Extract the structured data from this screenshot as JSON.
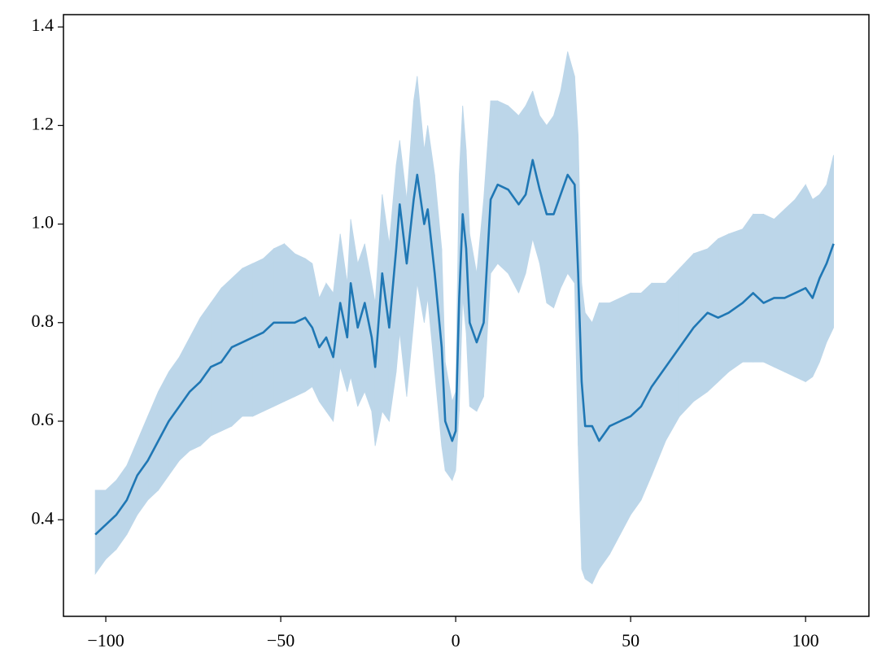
{
  "chart_data": {
    "type": "line",
    "x": [
      -103,
      -100,
      -97,
      -94,
      -91,
      -88,
      -85,
      -82,
      -79,
      -76,
      -73,
      -70,
      -67,
      -64,
      -61,
      -58,
      -55,
      -52,
      -49,
      -46,
      -43,
      -41,
      -39,
      -37,
      -35,
      -33,
      -31,
      -30,
      -28,
      -26,
      -24,
      -23,
      -21,
      -19,
      -17,
      -16,
      -14,
      -12,
      -11,
      -9,
      -8,
      -6,
      -4,
      -3,
      -1,
      0,
      1,
      2,
      3,
      4,
      6,
      8,
      10,
      12,
      15,
      18,
      20,
      22,
      24,
      26,
      28,
      30,
      32,
      34,
      35,
      36,
      37,
      39,
      41,
      44,
      47,
      50,
      53,
      56,
      60,
      64,
      68,
      72,
      75,
      78,
      82,
      85,
      88,
      91,
      94,
      97,
      100,
      102,
      104,
      106,
      108
    ],
    "series": [
      {
        "color": "#1f77b4",
        "band_color": "#bcd6e9",
        "values": [
          0.37,
          0.39,
          0.41,
          0.44,
          0.49,
          0.52,
          0.56,
          0.6,
          0.63,
          0.66,
          0.68,
          0.71,
          0.72,
          0.75,
          0.76,
          0.77,
          0.78,
          0.8,
          0.8,
          0.8,
          0.81,
          0.79,
          0.75,
          0.77,
          0.73,
          0.84,
          0.77,
          0.88,
          0.79,
          0.84,
          0.77,
          0.71,
          0.9,
          0.79,
          0.95,
          1.04,
          0.92,
          1.05,
          1.1,
          1.0,
          1.03,
          0.9,
          0.75,
          0.6,
          0.56,
          0.58,
          0.85,
          1.02,
          0.95,
          0.8,
          0.76,
          0.8,
          1.05,
          1.08,
          1.07,
          1.04,
          1.06,
          1.13,
          1.07,
          1.02,
          1.02,
          1.06,
          1.1,
          1.08,
          0.9,
          0.68,
          0.59,
          0.59,
          0.56,
          0.59,
          0.6,
          0.61,
          0.63,
          0.67,
          0.71,
          0.75,
          0.79,
          0.82,
          0.81,
          0.82,
          0.84,
          0.86,
          0.84,
          0.85,
          0.85,
          0.86,
          0.87,
          0.85,
          0.89,
          0.92,
          0.96
        ],
        "lower": [
          0.29,
          0.32,
          0.34,
          0.37,
          0.41,
          0.44,
          0.46,
          0.49,
          0.52,
          0.54,
          0.55,
          0.57,
          0.58,
          0.59,
          0.61,
          0.61,
          0.62,
          0.63,
          0.64,
          0.65,
          0.66,
          0.67,
          0.64,
          0.62,
          0.6,
          0.71,
          0.66,
          0.69,
          0.63,
          0.66,
          0.62,
          0.55,
          0.62,
          0.6,
          0.7,
          0.78,
          0.65,
          0.8,
          0.88,
          0.8,
          0.85,
          0.7,
          0.55,
          0.5,
          0.48,
          0.5,
          0.62,
          0.85,
          0.78,
          0.63,
          0.62,
          0.65,
          0.9,
          0.92,
          0.9,
          0.86,
          0.9,
          0.97,
          0.92,
          0.84,
          0.83,
          0.87,
          0.9,
          0.88,
          0.55,
          0.3,
          0.28,
          0.27,
          0.3,
          0.33,
          0.37,
          0.41,
          0.44,
          0.49,
          0.56,
          0.61,
          0.64,
          0.66,
          0.68,
          0.7,
          0.72,
          0.72,
          0.72,
          0.71,
          0.7,
          0.69,
          0.68,
          0.69,
          0.72,
          0.76,
          0.79
        ],
        "upper": [
          0.46,
          0.46,
          0.48,
          0.51,
          0.56,
          0.61,
          0.66,
          0.7,
          0.73,
          0.77,
          0.81,
          0.84,
          0.87,
          0.89,
          0.91,
          0.92,
          0.93,
          0.95,
          0.96,
          0.94,
          0.93,
          0.92,
          0.85,
          0.88,
          0.86,
          0.98,
          0.88,
          1.01,
          0.92,
          0.96,
          0.88,
          0.84,
          1.06,
          0.96,
          1.12,
          1.17,
          1.05,
          1.25,
          1.3,
          1.15,
          1.2,
          1.1,
          0.95,
          0.72,
          0.64,
          0.66,
          1.1,
          1.24,
          1.15,
          0.98,
          0.9,
          1.05,
          1.25,
          1.25,
          1.24,
          1.22,
          1.24,
          1.27,
          1.22,
          1.2,
          1.22,
          1.27,
          1.35,
          1.3,
          1.18,
          0.88,
          0.82,
          0.8,
          0.84,
          0.84,
          0.85,
          0.86,
          0.86,
          0.88,
          0.88,
          0.91,
          0.94,
          0.95,
          0.97,
          0.98,
          0.99,
          1.02,
          1.02,
          1.01,
          1.03,
          1.05,
          1.08,
          1.05,
          1.06,
          1.08,
          1.14
        ]
      }
    ],
    "xlim": [
      -112.1,
      118.1
    ],
    "ylim": [
      0.204,
      1.425
    ],
    "xticks": [
      {
        "value": -100,
        "label": "−100"
      },
      {
        "value": -50,
        "label": "−50"
      },
      0,
      50,
      100
    ],
    "yticks": [
      0.4,
      0.6,
      0.8,
      {
        "value": 1,
        "label": "1.0"
      },
      1.2,
      1.4
    ],
    "grid": false
  }
}
